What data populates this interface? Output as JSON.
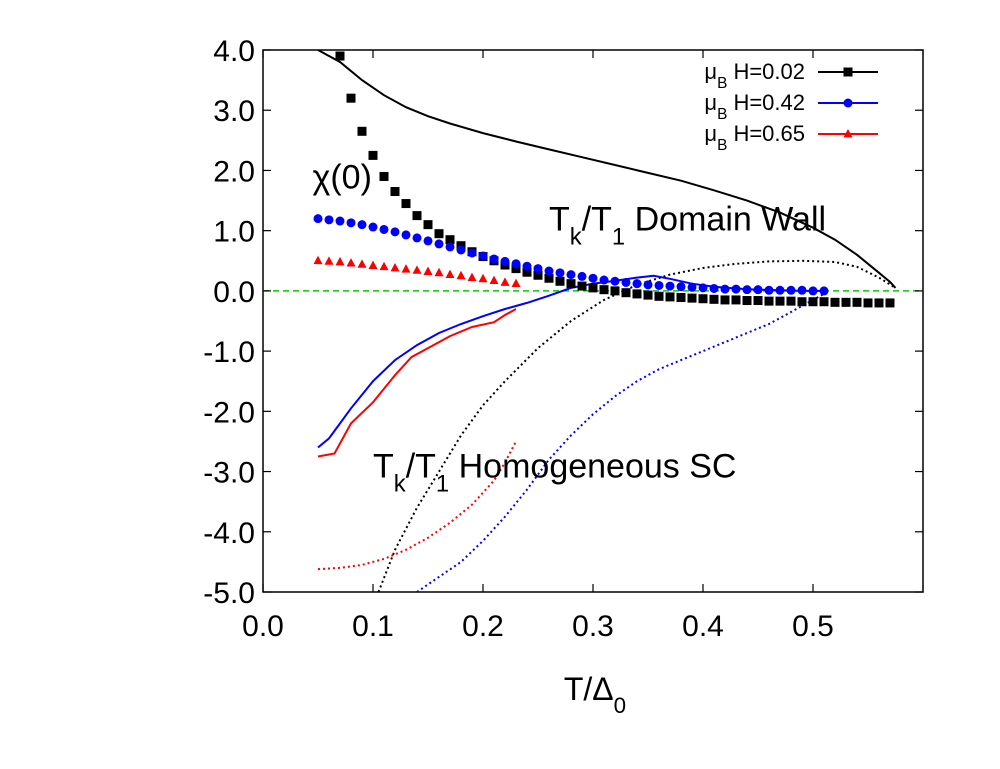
{
  "chart_data": {
    "type": "scatter",
    "xlabel": "T/Δ0",
    "ylabel": "",
    "xlim": [
      0.0,
      0.6
    ],
    "ylim": [
      -5.0,
      4.0
    ],
    "xticks": [
      "0.0",
      "0.1",
      "0.2",
      "0.3",
      "0.4",
      "0.5"
    ],
    "yticks": [
      "4.0",
      "3.0",
      "2.0",
      "1.0",
      "0.0",
      "-1.0",
      "-2.0",
      "-3.0",
      "-4.0",
      "-5.0"
    ],
    "grid": false,
    "legend_position": "top-right",
    "zero_line": {
      "y": 0.0,
      "color": "#00cc00"
    },
    "annotations": [
      {
        "text": "χ(0)",
        "x": 0.045,
        "y": 1.7
      },
      {
        "text": "Tk/T1 Domain Wall",
        "x": 0.26,
        "y": 1.0
      },
      {
        "text": "Tk/T1 Homogeneous SC",
        "x": 0.1,
        "y": -3.1
      }
    ],
    "series": [
      {
        "name": "μB H=0.02",
        "color": "#000000",
        "marker": "square",
        "chi": {
          "x": [
            0.07,
            0.08,
            0.09,
            0.1,
            0.11,
            0.12,
            0.13,
            0.14,
            0.15,
            0.16,
            0.17,
            0.18,
            0.19,
            0.2,
            0.21,
            0.22,
            0.23,
            0.24,
            0.25,
            0.26,
            0.27,
            0.28,
            0.29,
            0.3,
            0.31,
            0.32,
            0.33,
            0.34,
            0.35,
            0.36,
            0.37,
            0.38,
            0.39,
            0.4,
            0.41,
            0.42,
            0.43,
            0.44,
            0.45,
            0.46,
            0.47,
            0.48,
            0.49,
            0.5,
            0.51,
            0.52,
            0.53,
            0.54,
            0.55,
            0.56,
            0.57
          ],
          "y": [
            3.9,
            3.2,
            2.65,
            2.25,
            1.9,
            1.65,
            1.45,
            1.25,
            1.1,
            0.95,
            0.85,
            0.75,
            0.65,
            0.57,
            0.5,
            0.43,
            0.37,
            0.31,
            0.26,
            0.21,
            0.16,
            0.12,
            0.08,
            0.05,
            0.02,
            0.0,
            -0.03,
            -0.05,
            -0.07,
            -0.09,
            -0.1,
            -0.11,
            -0.12,
            -0.13,
            -0.14,
            -0.15,
            -0.15,
            -0.16,
            -0.16,
            -0.17,
            -0.17,
            -0.17,
            -0.18,
            -0.18,
            -0.18,
            -0.19,
            -0.19,
            -0.19,
            -0.2,
            -0.2,
            -0.2
          ]
        },
        "domain_wall": {
          "x": [
            0.05,
            0.07,
            0.09,
            0.11,
            0.13,
            0.15,
            0.17,
            0.2,
            0.23,
            0.26,
            0.29,
            0.32,
            0.35,
            0.38,
            0.41,
            0.44,
            0.47,
            0.5,
            0.52,
            0.54,
            0.55,
            0.56,
            0.57,
            0.575
          ],
          "y": [
            4.0,
            3.8,
            3.5,
            3.25,
            3.05,
            2.9,
            2.78,
            2.62,
            2.48,
            2.35,
            2.22,
            2.09,
            1.96,
            1.83,
            1.67,
            1.5,
            1.3,
            1.05,
            0.85,
            0.6,
            0.45,
            0.3,
            0.15,
            0.05
          ]
        },
        "homogeneous_sc": {
          "x": [
            0.105,
            0.12,
            0.14,
            0.16,
            0.18,
            0.2,
            0.22,
            0.25,
            0.28,
            0.31,
            0.34,
            0.37,
            0.4,
            0.43,
            0.46,
            0.49,
            0.52,
            0.54,
            0.56,
            0.575
          ],
          "y": [
            -5.0,
            -4.3,
            -3.6,
            -3.0,
            -2.4,
            -1.9,
            -1.5,
            -0.95,
            -0.5,
            -0.15,
            0.1,
            0.27,
            0.38,
            0.45,
            0.49,
            0.5,
            0.48,
            0.4,
            0.22,
            0.05
          ]
        }
      },
      {
        "name": "μB H=0.42",
        "color": "#0000ff",
        "marker": "circle",
        "chi": {
          "x": [
            0.05,
            0.06,
            0.07,
            0.08,
            0.09,
            0.1,
            0.11,
            0.12,
            0.13,
            0.14,
            0.15,
            0.16,
            0.17,
            0.18,
            0.19,
            0.2,
            0.21,
            0.22,
            0.23,
            0.24,
            0.25,
            0.26,
            0.27,
            0.28,
            0.29,
            0.3,
            0.31,
            0.32,
            0.33,
            0.34,
            0.35,
            0.36,
            0.37,
            0.38,
            0.39,
            0.4,
            0.41,
            0.42,
            0.43,
            0.44,
            0.45,
            0.46,
            0.47,
            0.48,
            0.49,
            0.5,
            0.51
          ],
          "y": [
            1.2,
            1.18,
            1.16,
            1.13,
            1.1,
            1.06,
            1.02,
            0.98,
            0.93,
            0.88,
            0.83,
            0.78,
            0.73,
            0.68,
            0.63,
            0.58,
            0.53,
            0.49,
            0.45,
            0.41,
            0.37,
            0.33,
            0.3,
            0.27,
            0.24,
            0.21,
            0.18,
            0.16,
            0.14,
            0.12,
            0.1,
            0.09,
            0.08,
            0.07,
            0.06,
            0.05,
            0.04,
            0.03,
            0.03,
            0.02,
            0.02,
            0.01,
            0.01,
            0.01,
            0.01,
            0.0,
            0.0
          ]
        },
        "domain_wall": {
          "x": [
            0.05,
            0.06,
            0.07,
            0.08,
            0.1,
            0.12,
            0.14,
            0.16,
            0.18,
            0.2,
            0.22,
            0.24,
            0.26,
            0.28,
            0.3,
            0.32,
            0.34,
            0.355,
            0.37,
            0.39,
            0.41,
            0.43,
            0.45,
            0.47,
            0.49,
            0.51
          ],
          "y": [
            -2.6,
            -2.45,
            -2.2,
            -1.95,
            -1.5,
            -1.15,
            -0.9,
            -0.7,
            -0.55,
            -0.42,
            -0.3,
            -0.2,
            -0.08,
            0.05,
            0.12,
            0.17,
            0.22,
            0.25,
            0.2,
            0.12,
            0.07,
            0.04,
            0.02,
            0.01,
            0.0,
            0.0
          ]
        },
        "homogeneous_sc": {
          "x": [
            0.14,
            0.16,
            0.18,
            0.2,
            0.22,
            0.24,
            0.26,
            0.28,
            0.3,
            0.32,
            0.34,
            0.36,
            0.38,
            0.4,
            0.42,
            0.44,
            0.46,
            0.48,
            0.5,
            0.51
          ],
          "y": [
            -5.0,
            -4.75,
            -4.5,
            -4.15,
            -3.75,
            -3.3,
            -2.8,
            -2.4,
            -2.05,
            -1.75,
            -1.5,
            -1.3,
            -1.15,
            -1.0,
            -0.85,
            -0.7,
            -0.55,
            -0.35,
            -0.15,
            -0.05
          ]
        }
      },
      {
        "name": "μB H=0.65",
        "color": "#ff0000",
        "marker": "triangle",
        "chi": {
          "x": [
            0.05,
            0.06,
            0.07,
            0.08,
            0.09,
            0.1,
            0.11,
            0.12,
            0.13,
            0.14,
            0.15,
            0.16,
            0.17,
            0.18,
            0.19,
            0.2,
            0.21,
            0.22,
            0.23
          ],
          "y": [
            0.5,
            0.49,
            0.48,
            0.46,
            0.44,
            0.42,
            0.4,
            0.38,
            0.36,
            0.34,
            0.32,
            0.3,
            0.27,
            0.25,
            0.22,
            0.2,
            0.17,
            0.14,
            0.12
          ]
        },
        "domain_wall": {
          "x": [
            0.05,
            0.065,
            0.08,
            0.1,
            0.12,
            0.135,
            0.15,
            0.17,
            0.19,
            0.21,
            0.22,
            0.23
          ],
          "y": [
            -2.75,
            -2.7,
            -2.2,
            -1.85,
            -1.4,
            -1.1,
            -0.95,
            -0.75,
            -0.6,
            -0.52,
            -0.4,
            -0.3
          ]
        },
        "homogeneous_sc": {
          "x": [
            0.05,
            0.07,
            0.09,
            0.11,
            0.13,
            0.15,
            0.17,
            0.19,
            0.21,
            0.22,
            0.23
          ],
          "y": [
            -4.62,
            -4.6,
            -4.55,
            -4.45,
            -4.3,
            -4.1,
            -3.85,
            -3.55,
            -3.15,
            -2.85,
            -2.5
          ]
        }
      }
    ]
  }
}
